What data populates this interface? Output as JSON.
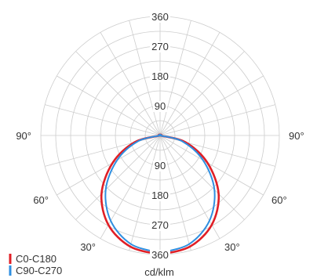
{
  "chart_data": {
    "type": "polar",
    "r_ticks": [
      90,
      180,
      270,
      360
    ],
    "rmax": 360,
    "angle_tick_step_deg": 15,
    "angle_labels": [
      "90°",
      "60°",
      "30°",
      "90°",
      "60°",
      "30°"
    ],
    "unit_label": "cd/klm",
    "grid": true,
    "legend_position": "bottom-left",
    "series": [
      {
        "name": "C0-C180",
        "color": "#e01f26",
        "gamma_deg": [
          0,
          15,
          30,
          45,
          60,
          75,
          90
        ],
        "values": [
          360,
          348,
          312,
          250,
          165,
          80,
          0
        ]
      },
      {
        "name": "C90-C270",
        "color": "#2f8fe0",
        "gamma_deg": [
          0,
          15,
          30,
          45,
          60,
          75,
          90
        ],
        "values": [
          355,
          340,
          298,
          232,
          150,
          70,
          0
        ]
      }
    ]
  }
}
